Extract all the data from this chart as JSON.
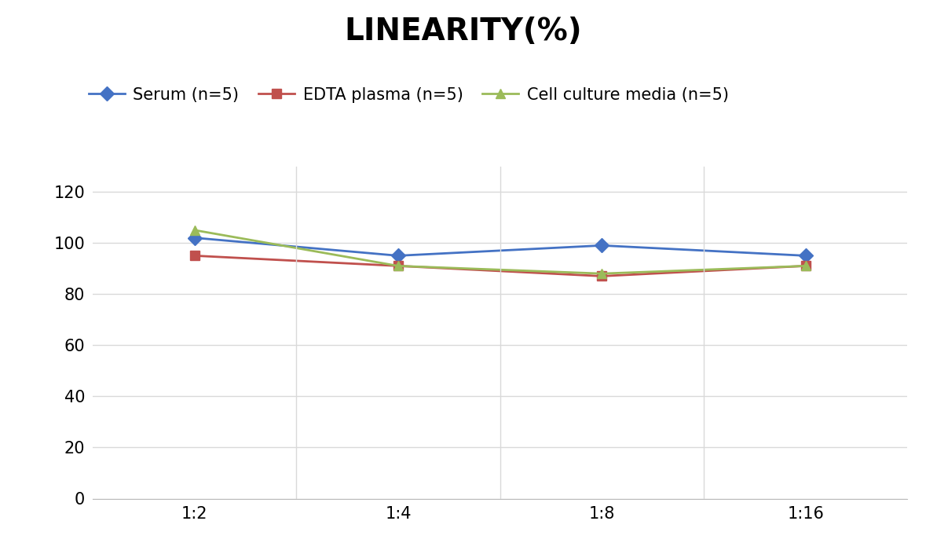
{
  "title": "LINEARITY(%)",
  "x_labels": [
    "1:2",
    "1:4",
    "1:8",
    "1:16"
  ],
  "series": [
    {
      "name": "Serum (n=5)",
      "values": [
        102,
        95,
        99,
        95
      ],
      "color": "#4472C4",
      "marker": "D",
      "marker_color": "#4472C4",
      "linewidth": 2.0
    },
    {
      "name": "EDTA plasma (n=5)",
      "values": [
        95,
        91,
        87,
        91
      ],
      "color": "#C0504D",
      "marker": "s",
      "marker_color": "#C0504D",
      "linewidth": 2.0
    },
    {
      "name": "Cell culture media (n=5)",
      "values": [
        105,
        91,
        88,
        91
      ],
      "color": "#9BBB59",
      "marker": "^",
      "marker_color": "#9BBB59",
      "linewidth": 2.0
    }
  ],
  "ylim": [
    0,
    130
  ],
  "yticks": [
    0,
    20,
    40,
    60,
    80,
    100,
    120
  ],
  "title_fontsize": 28,
  "legend_fontsize": 15,
  "tick_fontsize": 15,
  "background_color": "#FFFFFF",
  "grid_color": "#D9D9D9"
}
